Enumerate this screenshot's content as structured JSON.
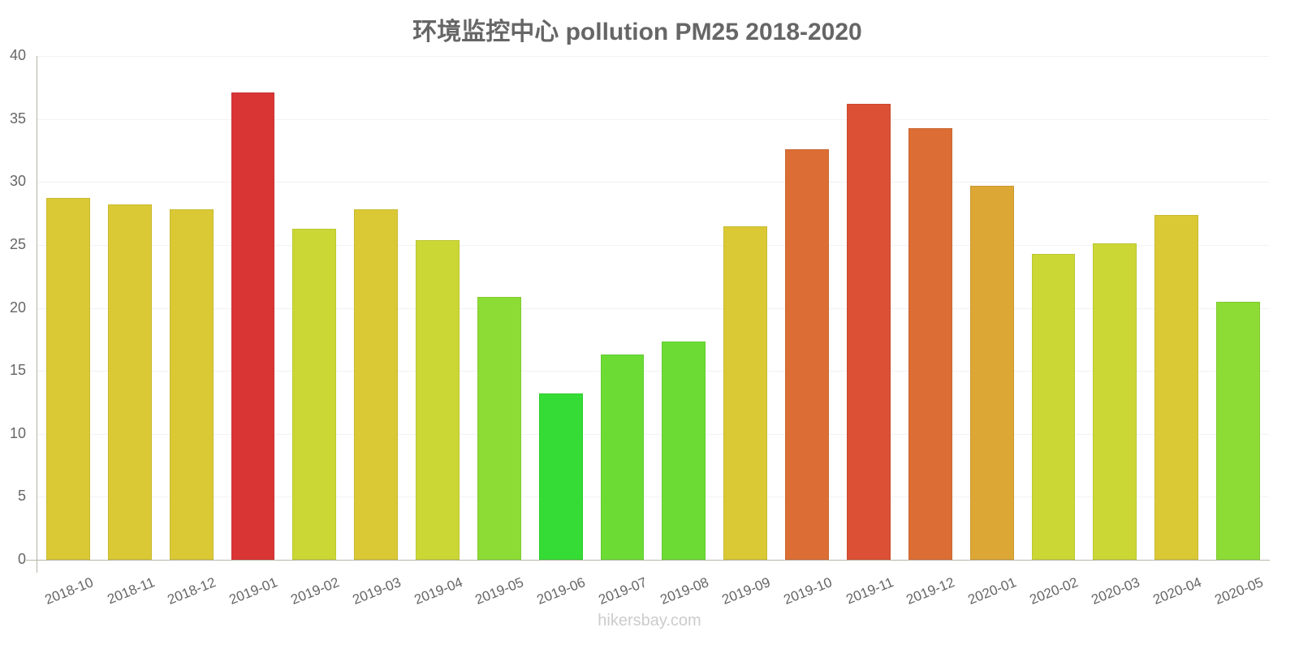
{
  "title": "环境监控中心 pollution PM25 2018-2020",
  "footer": "hikersbay.com",
  "y_ticks": [
    "0",
    "5",
    "10",
    "15",
    "20",
    "25",
    "30",
    "35",
    "40"
  ],
  "chart_data": {
    "type": "bar",
    "title": "环境监控中心 pollution PM25 2018-2020",
    "xlabel": "",
    "ylabel": "",
    "ylim": [
      0,
      40
    ],
    "grid": true,
    "legend": null,
    "categories": [
      "2018-10",
      "2018-11",
      "2018-12",
      "2019-01",
      "2019-02",
      "2019-03",
      "2019-04",
      "2019-05",
      "2019-06",
      "2019-07",
      "2019-08",
      "2019-09",
      "2019-10",
      "2019-11",
      "2019-12",
      "2020-01",
      "2020-02",
      "2020-03",
      "2020-04",
      "2020-05"
    ],
    "values": [
      28.7,
      28.2,
      27.8,
      37.1,
      26.3,
      27.8,
      25.4,
      20.9,
      13.2,
      16.3,
      17.3,
      26.5,
      32.6,
      36.2,
      34.3,
      29.7,
      24.3,
      25.1,
      27.4,
      20.5
    ],
    "colors": [
      "#dac935",
      "#dac935",
      "#dac935",
      "#da3535",
      "#cbd735",
      "#dac935",
      "#cbd735",
      "#8cdc35",
      "#35dc35",
      "#6cdc35",
      "#6cdc35",
      "#dac935",
      "#dc6e35",
      "#dc5035",
      "#dc6e35",
      "#dca735",
      "#cbd735",
      "#cbd735",
      "#dac935",
      "#8cdc35"
    ]
  }
}
